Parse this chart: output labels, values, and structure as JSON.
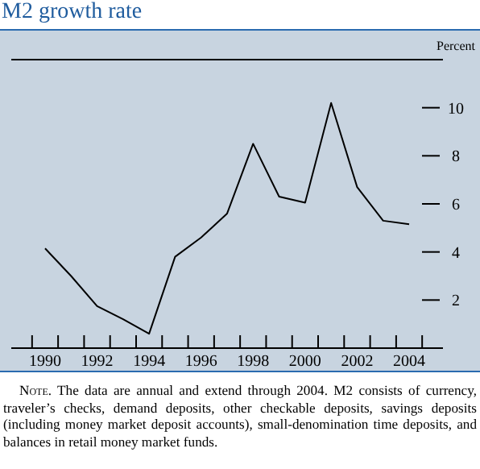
{
  "chart_data": {
    "type": "line",
    "title": "M2 growth rate",
    "ylabel": "Percent",
    "x": [
      1990,
      1991,
      1992,
      1993,
      1994,
      1995,
      1996,
      1997,
      1998,
      1999,
      2000,
      2001,
      2002,
      2003,
      2004
    ],
    "series": [
      {
        "color": "#000000",
        "values": [
          4.15,
          3.0,
          1.75,
          1.2,
          0.6,
          3.8,
          4.6,
          5.6,
          8.5,
          6.3,
          6.05,
          10.2,
          6.7,
          5.3,
          5.15
        ]
      }
    ],
    "xlim": [
      1988.7,
      2005.3
    ],
    "xticks": [
      {
        "value": 1989.5,
        "label": null
      },
      1990,
      {
        "value": 1990.5,
        "label": null
      },
      {
        "value": 1991.5,
        "label": null
      },
      1992,
      {
        "value": 1992.5,
        "label": null
      },
      {
        "value": 1993.5,
        "label": null
      },
      1994,
      {
        "value": 1994.5,
        "label": null
      },
      {
        "value": 1995.5,
        "label": null
      },
      1996,
      {
        "value": 1996.5,
        "label": null
      },
      {
        "value": 1997.5,
        "label": null
      },
      1998,
      {
        "value": 1998.5,
        "label": null
      },
      {
        "value": 1999.5,
        "label": null
      },
      2000,
      {
        "value": 2000.5,
        "label": null
      },
      {
        "value": 2001.5,
        "label": null
      },
      2002,
      {
        "value": 2002.5,
        "label": null
      },
      {
        "value": 2003.5,
        "label": null
      },
      2004,
      {
        "value": 2004.5,
        "label": null
      }
    ],
    "ylim": [
      0,
      12
    ],
    "yticks": [
      2,
      4,
      6,
      8,
      10
    ],
    "annotations": [
      "Note. The data are annual and extend through 2004. M2 consists of currency, traveler’s checks, demand deposits, other checkable deposits, savings deposits (including money market deposit accounts), small-denomination time deposits, and balances in retail money market funds."
    ]
  }
}
